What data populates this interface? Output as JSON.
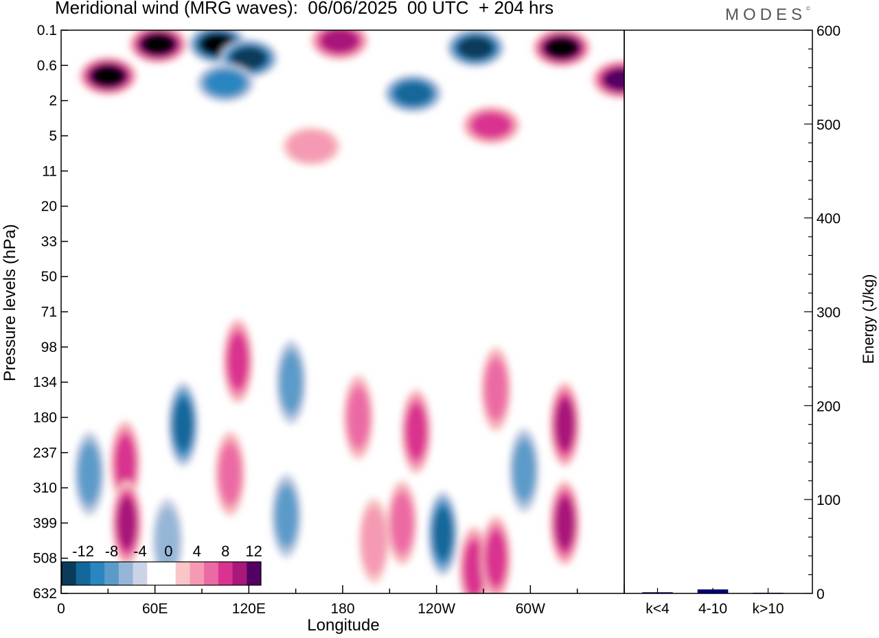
{
  "header": {
    "title": "Meridional wind (MRG waves):  06/06/2025  00 UTC  + 204 hrs",
    "brand": "MODES",
    "brand_mark": "©"
  },
  "chart_data": [
    {
      "type": "heatmap",
      "xlabel": "Longitude",
      "ylabel": "Pressure levels (hPa)",
      "x_ticks": [
        "0",
        "60E",
        "120E",
        "180",
        "120W",
        "60W"
      ],
      "y_ticks": [
        "0.1",
        "0.6",
        "2",
        "5",
        "11",
        "20",
        "33",
        "50",
        "71",
        "98",
        "134",
        "180",
        "237",
        "310",
        "399",
        "508",
        "632"
      ],
      "colorbar": {
        "labels": [
          "-12",
          "-8",
          "-4",
          "0",
          "4",
          "8",
          "12"
        ],
        "levels": [
          -14,
          -12,
          -10,
          -8,
          -6,
          -4,
          -2,
          0,
          2,
          4,
          6,
          8,
          10,
          12,
          14
        ],
        "colors": [
          "#0b3b5a",
          "#13679a",
          "#2a86c0",
          "#5b9bc9",
          "#96b6d7",
          "#cdd3e6",
          "#ffffff",
          "#ffffff",
          "#f8c6c6",
          "#f59ab4",
          "#ec6aa4",
          "#d9338f",
          "#a8177a",
          "#530063"
        ]
      },
      "features": [
        {
          "lon": 30,
          "level_idx": 1.3,
          "value": 14
        },
        {
          "lon": 62,
          "level_idx": 0.4,
          "value": 14
        },
        {
          "lon": 100,
          "level_idx": 0.4,
          "value": -14
        },
        {
          "lon": 120,
          "level_idx": 0.8,
          "value": -12
        },
        {
          "lon": 105,
          "level_idx": 1.5,
          "value": -8
        },
        {
          "lon": 178,
          "level_idx": 0.3,
          "value": 10
        },
        {
          "lon": 225,
          "level_idx": 1.8,
          "value": -9
        },
        {
          "lon": 265,
          "level_idx": 0.5,
          "value": -12
        },
        {
          "lon": 320,
          "level_idx": 0.5,
          "value": 14
        },
        {
          "lon": 358,
          "level_idx": 1.4,
          "value": 11
        },
        {
          "lon": 275,
          "level_idx": 2.7,
          "value": 7
        },
        {
          "lon": 160,
          "level_idx": 3.3,
          "value": 4
        },
        {
          "lon": 41,
          "level_idx": 12.3,
          "value": 8
        },
        {
          "lon": 42,
          "level_idx": 14.0,
          "value": 10
        },
        {
          "lon": 18,
          "level_idx": 12.6,
          "value": -6
        },
        {
          "lon": 78,
          "level_idx": 11.2,
          "value": -9
        },
        {
          "lon": 68,
          "level_idx": 14.5,
          "value": -4
        },
        {
          "lon": 113,
          "level_idx": 9.4,
          "value": 7
        },
        {
          "lon": 108,
          "level_idx": 12.6,
          "value": 6
        },
        {
          "lon": 147,
          "level_idx": 10.0,
          "value": -6
        },
        {
          "lon": 144,
          "level_idx": 13.8,
          "value": -5
        },
        {
          "lon": 190,
          "level_idx": 11.0,
          "value": 5
        },
        {
          "lon": 200,
          "level_idx": 14.5,
          "value": 4
        },
        {
          "lon": 227,
          "level_idx": 11.4,
          "value": 8
        },
        {
          "lon": 218,
          "level_idx": 14.0,
          "value": 5
        },
        {
          "lon": 244,
          "level_idx": 14.3,
          "value": -10
        },
        {
          "lon": 264,
          "level_idx": 15.3,
          "value": 8
        },
        {
          "lon": 278,
          "level_idx": 15.0,
          "value": 7
        },
        {
          "lon": 278,
          "level_idx": 10.2,
          "value": 6
        },
        {
          "lon": 296,
          "level_idx": 12.5,
          "value": -6
        },
        {
          "lon": 322,
          "level_idx": 11.2,
          "value": 10
        },
        {
          "lon": 322,
          "level_idx": 14.0,
          "value": 9
        }
      ]
    },
    {
      "type": "bar",
      "categories": [
        "k<4",
        "4-10",
        "k>10"
      ],
      "values": [
        1,
        4,
        0.5
      ],
      "colors": [
        "#000080",
        "#000080",
        "#000080"
      ],
      "ylabel": "Energy (J/kg)",
      "ylim": [
        0,
        600
      ],
      "y_ticks": [
        "0",
        "100",
        "200",
        "300",
        "400",
        "500",
        "600"
      ]
    }
  ]
}
